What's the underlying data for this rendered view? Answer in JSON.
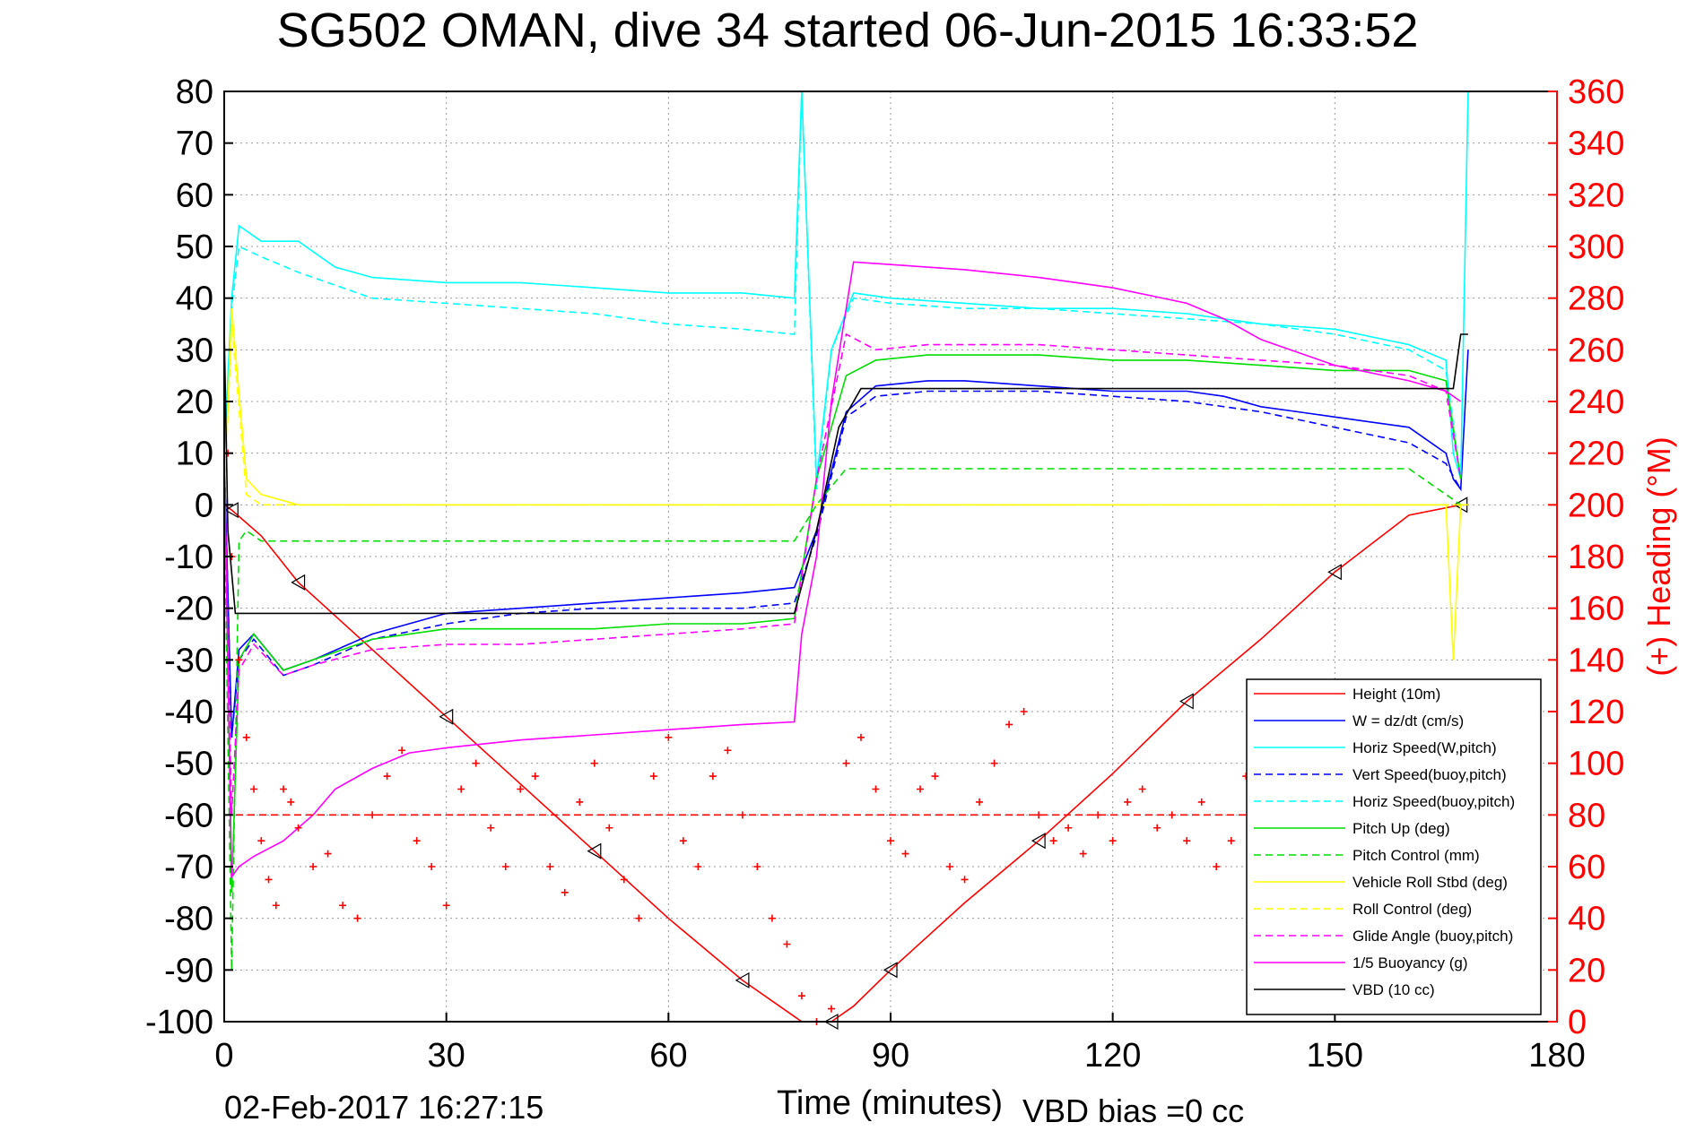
{
  "chart_data": {
    "type": "line",
    "title": "SG502 OMAN, dive 34 started 06-Jun-2015 16:33:52",
    "xlabel": "Time (minutes)",
    "ylabel": "",
    "y2label": "(+) Heading (°M)",
    "xlim": [
      0,
      180
    ],
    "ylim": [
      -100,
      80
    ],
    "y2lim": [
      0,
      360
    ],
    "grid": true,
    "legend_position": "bottom-right",
    "x_ticks": [
      "0",
      "30",
      "60",
      "90",
      "120",
      "150",
      "180"
    ],
    "y_ticks": [
      "80",
      "70",
      "60",
      "50",
      "40",
      "30",
      "20",
      "10",
      "0",
      "-10",
      "-20",
      "-30",
      "-40",
      "-50",
      "-60",
      "-70",
      "-80",
      "-90",
      "-100"
    ],
    "y2_ticks": [
      "360",
      "340",
      "320",
      "300",
      "280",
      "260",
      "240",
      "220",
      "200",
      "180",
      "160",
      "140",
      "120",
      "100",
      "80",
      "60",
      "40",
      "20",
      "0"
    ],
    "footer_date": "02-Feb-2017 16:27:15",
    "footer_note": "VBD bias =0 cc",
    "series": [
      {
        "name": "Height (10m)",
        "color": "#ff0000",
        "style": "solid",
        "x": [
          0,
          1,
          5,
          10,
          20,
          30,
          40,
          50,
          60,
          70,
          78,
          82,
          85,
          90,
          100,
          110,
          120,
          130,
          140,
          150,
          160,
          167,
          168
        ],
        "y": [
          0,
          -1,
          -6,
          -15,
          -28,
          -41,
          -54,
          -67,
          -80,
          -92,
          -100,
          -100,
          -97,
          -90,
          -77,
          -65,
          -52,
          -38,
          -26,
          -13,
          -2,
          0,
          0
        ]
      },
      {
        "name": "W = dz/dt (cm/s)",
        "color": "#0000ff",
        "style": "solid",
        "x": [
          0,
          1,
          2,
          4,
          8,
          12,
          20,
          30,
          40,
          50,
          60,
          70,
          77,
          80,
          84,
          88,
          95,
          100,
          110,
          120,
          130,
          135,
          140,
          145,
          150,
          160,
          165,
          166,
          167,
          168
        ],
        "y": [
          10,
          -45,
          -28,
          -25,
          -32,
          -30,
          -25,
          -21,
          -20,
          -19,
          -18,
          -17,
          -16,
          -5,
          18,
          23,
          24,
          24,
          23,
          22,
          22,
          21,
          19,
          18,
          17,
          15,
          10,
          5,
          3,
          30
        ]
      },
      {
        "name": "Horiz Speed(W,pitch)",
        "color": "#00ffff",
        "style": "solid",
        "x": [
          0,
          1,
          2,
          5,
          10,
          15,
          20,
          30,
          40,
          50,
          60,
          70,
          77,
          78,
          80,
          82,
          85,
          90,
          100,
          110,
          120,
          130,
          140,
          150,
          160,
          165,
          166,
          167,
          168
        ],
        "y": [
          10,
          40,
          54,
          51,
          51,
          46,
          44,
          43,
          43,
          42,
          41,
          41,
          40,
          80,
          5,
          30,
          41,
          40,
          39,
          38,
          38,
          37,
          35,
          34,
          31,
          28,
          10,
          5,
          80
        ]
      },
      {
        "name": "Vert Speed(buoy,pitch)",
        "color": "#0000ff",
        "style": "dashed",
        "x": [
          0,
          1,
          2,
          4,
          8,
          12,
          20,
          30,
          40,
          50,
          60,
          70,
          77,
          80,
          84,
          88,
          95,
          100,
          110,
          120,
          130,
          140,
          150,
          160,
          165,
          167
        ],
        "y": [
          10,
          -45,
          -30,
          -26,
          -33,
          -31,
          -26,
          -23,
          -21,
          -20,
          -20,
          -20,
          -19,
          -6,
          17,
          21,
          22,
          22,
          22,
          21,
          20,
          18,
          15,
          12,
          8,
          3
        ]
      },
      {
        "name": "Horiz Speed(buoy,pitch)",
        "color": "#00ffff",
        "style": "dashed",
        "x": [
          0,
          1,
          2,
          5,
          10,
          20,
          30,
          40,
          50,
          60,
          70,
          77,
          78,
          80,
          82,
          85,
          90,
          100,
          110,
          120,
          130,
          140,
          150,
          160,
          165,
          167
        ],
        "y": [
          10,
          38,
          50,
          48,
          45,
          40,
          39,
          38,
          37,
          35,
          34,
          33,
          80,
          3,
          30,
          40,
          39,
          38,
          38,
          37,
          36,
          35,
          33,
          30,
          26,
          5
        ]
      },
      {
        "name": "Pitch Up (deg)",
        "color": "#00dd00",
        "style": "solid",
        "x": [
          0,
          1,
          2,
          4,
          8,
          12,
          20,
          30,
          40,
          50,
          60,
          70,
          77,
          80,
          84,
          88,
          95,
          100,
          110,
          120,
          130,
          140,
          150,
          160,
          165,
          167
        ],
        "y": [
          10,
          -75,
          -30,
          -25,
          -32,
          -30,
          -26,
          -24,
          -24,
          -24,
          -23,
          -23,
          -22,
          5,
          25,
          28,
          29,
          29,
          29,
          28,
          28,
          27,
          26,
          26,
          24,
          5
        ]
      },
      {
        "name": "Pitch Control (mm)",
        "color": "#00dd00",
        "style": "dashed",
        "x": [
          0,
          1,
          2,
          3,
          5,
          10,
          20,
          40,
          60,
          77,
          80,
          84,
          90,
          120,
          140,
          160,
          167
        ],
        "y": [
          0,
          -90,
          -7,
          -5,
          -7,
          -7,
          -7,
          -7,
          -7,
          -7,
          0,
          7,
          7,
          7,
          7,
          7,
          0
        ]
      },
      {
        "name": "Vehicle Roll Stbd (deg)",
        "color": "#ffff00",
        "style": "solid",
        "x": [
          0,
          1,
          3,
          5,
          10,
          20,
          30,
          40,
          50,
          60,
          70,
          77,
          80,
          82,
          84,
          90,
          100,
          110,
          120,
          130,
          140,
          150,
          160,
          165,
          166,
          167,
          168
        ],
        "y": [
          0,
          38,
          5,
          2,
          0,
          0,
          0,
          0,
          0,
          0,
          0,
          0,
          0,
          0,
          0,
          0,
          0,
          0,
          0,
          0,
          0,
          0,
          0,
          0,
          -30,
          0,
          0
        ]
      },
      {
        "name": "Roll Control (deg)",
        "color": "#ffff00",
        "style": "dashed",
        "x": [
          0,
          1,
          3,
          5,
          10,
          20,
          30,
          40,
          50,
          60,
          70,
          77,
          80,
          82,
          84,
          90,
          100,
          110,
          120,
          130,
          140,
          150,
          160,
          165,
          167
        ],
        "y": [
          0,
          35,
          2,
          0,
          0,
          0,
          0,
          0,
          0,
          0,
          0,
          0,
          0,
          0,
          0,
          0,
          0,
          0,
          0,
          0,
          0,
          0,
          0,
          0,
          0
        ]
      },
      {
        "name": "Glide Angle (buoy,pitch)",
        "color": "#ff00ff",
        "style": "dashed",
        "x": [
          0,
          1,
          2,
          4,
          8,
          12,
          20,
          30,
          40,
          50,
          60,
          70,
          77,
          80,
          84,
          88,
          95,
          100,
          110,
          120,
          130,
          140,
          150,
          160,
          165,
          167
        ],
        "y": [
          10,
          -60,
          -32,
          -27,
          -33,
          -31,
          -28,
          -27,
          -27,
          -26,
          -25,
          -24,
          -23,
          5,
          33,
          30,
          31,
          31,
          31,
          30,
          29,
          28,
          27,
          25,
          22,
          5
        ]
      },
      {
        "name": "1/5 Buoyancy (g)",
        "color": "#ff00ff",
        "style": "solid",
        "x": [
          0,
          1,
          2,
          4,
          8,
          12,
          15,
          20,
          25,
          30,
          40,
          50,
          60,
          70,
          77,
          78,
          80,
          82,
          85,
          90,
          100,
          110,
          120,
          130,
          135,
          140,
          150,
          160,
          165,
          167
        ],
        "y": [
          10,
          -72,
          -70,
          -68,
          -65,
          -60,
          -55,
          -51,
          -48,
          -47,
          -45.5,
          -44.5,
          -43.5,
          -42.5,
          -42,
          -25,
          -10,
          20,
          47,
          46.5,
          45.5,
          44,
          42,
          39,
          36,
          32,
          27,
          24,
          22,
          20
        ]
      },
      {
        "name": "VBD (10 cc)",
        "color": "#000000",
        "style": "solid",
        "x": [
          0,
          0.5,
          1.5,
          10,
          30,
          50,
          70,
          77,
          80,
          83,
          86,
          90,
          100,
          120,
          140,
          160,
          166,
          167,
          168
        ],
        "y": [
          34,
          -5,
          -21,
          -21,
          -21,
          -21,
          -21,
          -21,
          -5,
          15,
          22.5,
          22.5,
          22.5,
          22.5,
          22.5,
          22.5,
          22.5,
          33,
          33
        ]
      },
      {
        "name": "(+) Heading (°M)",
        "color": "#ff0000",
        "style": "marker-plus",
        "axis": "right",
        "x": [
          0.5,
          1,
          2,
          3,
          4,
          5,
          6,
          7,
          8,
          9,
          10,
          12,
          14,
          16,
          18,
          20,
          22,
          24,
          26,
          28,
          30,
          32,
          34,
          36,
          38,
          40,
          42,
          44,
          46,
          48,
          50,
          52,
          54,
          56,
          58,
          60,
          62,
          64,
          66,
          68,
          70,
          72,
          74,
          76,
          78,
          80,
          82,
          84,
          86,
          88,
          90,
          92,
          94,
          96,
          98,
          100,
          102,
          104,
          106,
          108,
          110,
          112,
          114,
          116,
          118,
          120,
          122,
          124,
          126,
          128,
          130,
          132,
          134,
          136,
          138,
          140
        ],
        "y": [
          220,
          180,
          140,
          110,
          90,
          70,
          55,
          45,
          90,
          85,
          75,
          60,
          65,
          45,
          40,
          80,
          95,
          105,
          70,
          60,
          45,
          90,
          100,
          75,
          60,
          90,
          95,
          60,
          50,
          85,
          100,
          75,
          55,
          40,
          95,
          110,
          70,
          60,
          95,
          105,
          80,
          60,
          40,
          30,
          10,
          0,
          5,
          100,
          110,
          90,
          70,
          65,
          90,
          95,
          60,
          55,
          85,
          100,
          115,
          120,
          80,
          70,
          75,
          65,
          80,
          70,
          85,
          90,
          75,
          80,
          70,
          85,
          60,
          70,
          95,
          110
        ]
      },
      {
        "name": "",
        "color": "#ff0000",
        "style": "dashed",
        "axis": "right",
        "x": [
          0,
          168
        ],
        "y": [
          80,
          80
        ]
      }
    ]
  }
}
